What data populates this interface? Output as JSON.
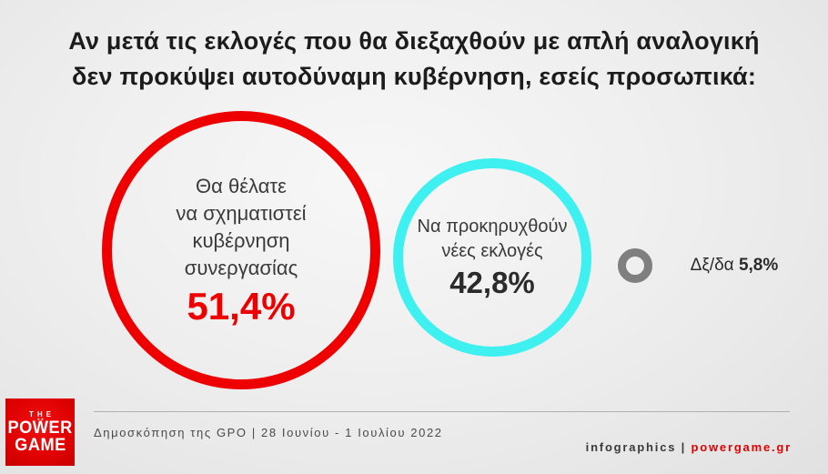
{
  "title": "Αν μετά τις εκλογές που θα διεξαχθούν με απλή αναλογική\nδεν προκύψει αυτοδύναμη κυβέρνηση, εσείς προσωπικά:",
  "chart_data": {
    "type": "pie",
    "title": "Αν μετά τις εκλογές που θα διεξαχθούν με απλή αναλογική δεν προκύψει αυτοδύναμη κυβέρνηση, εσείς προσωπικά:",
    "categories": [
      "Θα θέλατε να σχηματιστεί κυβέρνηση συνεργασίας",
      "Να προκηρυχθούν νέες εκλογές",
      "Δξ/δα"
    ],
    "values": [
      51.4,
      42.8,
      5.8
    ],
    "value_labels": [
      "51,4%",
      "42,8%",
      "5,8%"
    ],
    "colors": [
      "#ee0000",
      "#3ff0f0",
      "#7f7f7f"
    ],
    "legend_position": "none",
    "style": "proportional circles (bubble infographic)"
  },
  "bubbles": {
    "cooperation": {
      "label": "Θα θέλατε\nνα σχηματιστεί\nκυβέρνηση\nσυνεργασίας",
      "value": "51,4%",
      "color": "#ee0000"
    },
    "new_elections": {
      "label": "Να προκηρυχθούν\nνέες εκλογές",
      "value": "42,8%",
      "color": "#3ff0f0"
    },
    "dont_know": {
      "label": "Δξ/δα ",
      "value": "5,8%",
      "color": "#7f7f7f"
    }
  },
  "logo": {
    "top": "THE",
    "main": "POẄER",
    "bottom": "GAME",
    "background_color": "#e00202"
  },
  "footer": {
    "source": "Δημοσκόπηση της GPO | 28 Ιουνίου - 1 Ιουλίου 2022",
    "credits_prefix": "infographics | ",
    "credits_link": "powergame.gr",
    "link_color": "#e00202"
  }
}
